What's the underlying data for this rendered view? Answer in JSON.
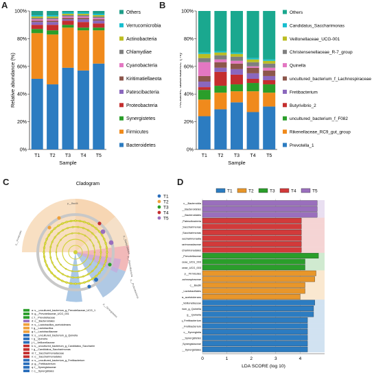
{
  "panels": {
    "a": "A",
    "b": "B",
    "c": "C",
    "d": "D"
  },
  "chart_data": [
    {
      "id": "A",
      "type": "bar",
      "stacked": true,
      "percent": true,
      "xlabel": "Sample",
      "ylabel": "Relative abundance (%)",
      "categories": [
        "T1",
        "T2",
        "T3",
        "T4",
        "T5"
      ],
      "yticks": [
        "0%",
        "20%",
        "40%",
        "60%",
        "80%",
        "100%"
      ],
      "ylim": [
        0,
        100
      ],
      "legend_position": "right",
      "legend_order": [
        "Others",
        "Verrucomicrobia",
        "Actinobacteria",
        "Chlamydiae",
        "Cyanobacteria",
        "Kiritimatiellaeota",
        "Patescibacteria",
        "Proteobacteria",
        "Synergistetes",
        "Firmicutes",
        "Bacteroidetes"
      ],
      "series": [
        {
          "name": "Bacteroidetes",
          "color": "#2c7cc1",
          "values": [
            51,
            47,
            59,
            57,
            62
          ]
        },
        {
          "name": "Firmicutes",
          "color": "#f08a1c",
          "values": [
            33,
            36,
            29,
            29,
            24
          ]
        },
        {
          "name": "Synergistetes",
          "color": "#2a9e2a",
          "values": [
            3,
            3,
            2,
            2,
            2
          ]
        },
        {
          "name": "Proteobacteria",
          "color": "#c42e2e",
          "values": [
            3,
            4,
            3,
            4,
            3
          ]
        },
        {
          "name": "Patescibacteria",
          "color": "#8a67bd",
          "values": [
            2,
            2,
            1,
            2,
            2
          ]
        },
        {
          "name": "Kiritimatiellaeota",
          "color": "#8c564b",
          "values": [
            1,
            1,
            1,
            1,
            1
          ]
        },
        {
          "name": "Cyanobacteria",
          "color": "#e377c2",
          "values": [
            1,
            1,
            1,
            1,
            1
          ]
        },
        {
          "name": "Chlamydiae",
          "color": "#7f7f7f",
          "values": [
            1,
            1,
            1,
            1,
            1
          ]
        },
        {
          "name": "Actinobacteria",
          "color": "#bcbd22",
          "values": [
            1,
            1,
            1,
            1,
            1
          ]
        },
        {
          "name": "Verrucomicrobia",
          "color": "#17becf",
          "values": [
            1,
            1,
            1,
            1,
            1
          ]
        },
        {
          "name": "Others",
          "color": "#1f9e89",
          "values": [
            3,
            3,
            1,
            1,
            2
          ]
        }
      ]
    },
    {
      "id": "B",
      "type": "bar",
      "stacked": true,
      "percent": true,
      "xlabel": "Sample",
      "ylabel": "Relative abundance (%)",
      "categories": [
        "T1",
        "T2",
        "T3",
        "T4",
        "T5"
      ],
      "yticks": [
        "0%",
        "20%",
        "40%",
        "60%",
        "80%",
        "100%"
      ],
      "ylim": [
        0,
        100
      ],
      "legend_position": "right",
      "legend_order": [
        "Others",
        "Candidatus_Saccharimonas",
        "Veillonellaceae_UCG-001",
        "Christensenellaceae_R-7_group",
        "Quinella",
        "uncultured_bacterium_f_Lachnospiraceae",
        "Fretibacterium",
        "Butyrivibrio_2",
        "uncultured_bacterium_f_F082",
        "Rikenellaceae_RC9_gut_group",
        "Prevotella_1"
      ],
      "series": [
        {
          "name": "Prevotella_1",
          "color": "#2c7cc1",
          "values": [
            24,
            29,
            34,
            27,
            31
          ]
        },
        {
          "name": "Rikenellaceae_RC9_gut_group",
          "color": "#f08a1c",
          "values": [
            12,
            12,
            8,
            15,
            10
          ]
        },
        {
          "name": "uncultured_bacterium_f_F082",
          "color": "#2a9e2a",
          "values": [
            7,
            5,
            5,
            6,
            6
          ]
        },
        {
          "name": "Butyrivibrio_2",
          "color": "#c42e2e",
          "values": [
            2,
            10,
            7,
            3,
            3
          ]
        },
        {
          "name": "Fretibacterium",
          "color": "#8a67bd",
          "values": [
            4,
            3,
            4,
            4,
            3
          ]
        },
        {
          "name": "uncultured_bacterium_f_Lachnospiraceae",
          "color": "#8c564b",
          "values": [
            4,
            4,
            4,
            4,
            4
          ]
        },
        {
          "name": "Quinella",
          "color": "#e377c2",
          "values": [
            10,
            2,
            2,
            1,
            2
          ]
        },
        {
          "name": "Christensenellaceae_R-7_group",
          "color": "#7f7f7f",
          "values": [
            3,
            3,
            3,
            3,
            3
          ]
        },
        {
          "name": "Veillonellaceae_UCG-001",
          "color": "#bcbd22",
          "values": [
            3,
            2,
            2,
            2,
            2
          ]
        },
        {
          "name": "Candidatus_Saccharimonas",
          "color": "#17becf",
          "values": [
            1,
            1,
            1,
            1,
            1
          ]
        },
        {
          "name": "Others",
          "color": "#1aa88f",
          "values": [
            30,
            29,
            30,
            34,
            35
          ]
        }
      ]
    },
    {
      "id": "C",
      "type": "other",
      "title": "Cladogram",
      "legend": [
        {
          "name": "T1",
          "color": "#2a6ebb"
        },
        {
          "name": "T2",
          "color": "#f0a03a"
        },
        {
          "name": "T3",
          "color": "#2a9e2a"
        },
        {
          "name": "T4",
          "color": "#c42e2e"
        },
        {
          "name": "T5",
          "color": "#9a6fbd"
        }
      ],
      "key": [
        {
          "text": "a: s__uncultured_bacterium_g_Prevotellaceae_UCG_1",
          "color": "#2a9e2a"
        },
        {
          "text": "b: g__Prevotellaceae_UCG_001",
          "color": "#2a9e2a"
        },
        {
          "text": "c: f__Prevotellaceae",
          "color": "#2a9e2a"
        },
        {
          "text": "d: o__Bacteroidales",
          "color": "#9a6fbd"
        },
        {
          "text": "e: s__Lactobacillus_acetotolerans",
          "color": "#f0a03a"
        },
        {
          "text": "f: g__Lactobacillus",
          "color": "#f0a03a"
        },
        {
          "text": "g: f__Lactobacillaceae",
          "color": "#f0a03a"
        },
        {
          "text": "h: s__uncultured_bacterium_g_Quinella",
          "color": "#2a6ebb"
        },
        {
          "text": "i: g__Quinella",
          "color": "#2a6ebb"
        },
        {
          "text": "j: f__Veillonellaceae",
          "color": "#2a6ebb"
        },
        {
          "text": "k: s__uncultured_bacterium_g_Candidatus_Saccharim",
          "color": "#c42e2e"
        },
        {
          "text": "l: g__Candidatus_Saccharimonas",
          "color": "#c42e2e"
        },
        {
          "text": "m: f__Saccharimonadaceae",
          "color": "#c42e2e"
        },
        {
          "text": "n: o__Saccharimonadales",
          "color": "#c42e2e"
        },
        {
          "text": "o: s__uncultured_bacterium_g_Fretibacterium",
          "color": "#2a6ebb"
        },
        {
          "text": "p: g__Fretibacterium",
          "color": "#2a6ebb"
        },
        {
          "text": "q: f__Synergistaceae",
          "color": "#2a6ebb"
        },
        {
          "text": "r: o__Synergistales",
          "color": "#2a6ebb"
        }
      ],
      "sector_labels": [
        "p__Firmicutes",
        "p__Bacilli",
        "p__Bacteroidetes",
        "p__Synergistetes",
        "p__Patescibacteria",
        "p__Proteobacteria"
      ]
    },
    {
      "id": "D",
      "type": "bar",
      "orientation": "horizontal",
      "xlabel": "LDA SCORE (log 10)",
      "xlim": [
        0,
        5
      ],
      "xticks": [
        0,
        1,
        2,
        3,
        4
      ],
      "legend_position": "top",
      "groups": [
        {
          "name": "T1",
          "color": "#2c7cc1"
        },
        {
          "name": "T2",
          "color": "#e8962a"
        },
        {
          "name": "T3",
          "color": "#2a9e2a"
        },
        {
          "name": "T4",
          "color": "#d23a3a"
        },
        {
          "name": "T5",
          "color": "#9a6fbd"
        }
      ],
      "bars": [
        {
          "label": "c__Bacteroidia",
          "group": "T5",
          "value": 4.7
        },
        {
          "label": "p__Bacteroidetes",
          "group": "T5",
          "value": 4.7
        },
        {
          "label": "o__Bacteroidales",
          "group": "T5",
          "value": 4.7
        },
        {
          "label": "p__Patescibacteria",
          "group": "T4",
          "value": 4.05
        },
        {
          "label": "s__uncultured_bacterium_g_Candidatus_Saccharimonas",
          "group": "T4",
          "value": 4.05
        },
        {
          "label": "g__Candidatus_Saccharimonas",
          "group": "T4",
          "value": 4.05
        },
        {
          "label": "c__Saccharimonadia",
          "group": "T4",
          "value": 4.05
        },
        {
          "label": "f__Saccharimonadaceae",
          "group": "T4",
          "value": 4.05
        },
        {
          "label": "o__Saccharimonadales",
          "group": "T4",
          "value": 4.05
        },
        {
          "label": "f__Prevotellaceae",
          "group": "T3",
          "value": 4.75
        },
        {
          "label": "g__Prevotellaceae_UCG_003",
          "group": "T3",
          "value": 4.2
        },
        {
          "label": "s__uncultured_bacterium_g_Prevotellaceae_UCG_003",
          "group": "T3",
          "value": 4.2
        },
        {
          "label": "p__Firmicutes",
          "group": "T2",
          "value": 4.65
        },
        {
          "label": "f__Lachnospiraceae",
          "group": "T2",
          "value": 4.6
        },
        {
          "label": "c__Bacilli",
          "group": "T2",
          "value": 4.2
        },
        {
          "label": "o__Lactobacillales",
          "group": "T2",
          "value": 4.2
        },
        {
          "label": "s__Lactobacillus_acetotolerans",
          "group": "T2",
          "value": 4.0
        },
        {
          "label": "f__Veillonellaceae",
          "group": "T1",
          "value": 4.6
        },
        {
          "label": "s__uncultured_bacterium_g_Quinella",
          "group": "T1",
          "value": 4.55
        },
        {
          "label": "g__Quinella",
          "group": "T1",
          "value": 4.55
        },
        {
          "label": "s__uncultured_bacterium_g_Fretibacterium",
          "group": "T1",
          "value": 4.3
        },
        {
          "label": "g__Fretibacterium",
          "group": "T1",
          "value": 4.3
        },
        {
          "label": "c__Synergistia",
          "group": "T1",
          "value": 4.3
        },
        {
          "label": "p__Synergistetes",
          "group": "T1",
          "value": 4.3
        },
        {
          "label": "f__Synergistaceae",
          "group": "T1",
          "value": 4.3
        },
        {
          "label": "o__Synergistales",
          "group": "T1",
          "value": 4.3
        }
      ]
    }
  ]
}
